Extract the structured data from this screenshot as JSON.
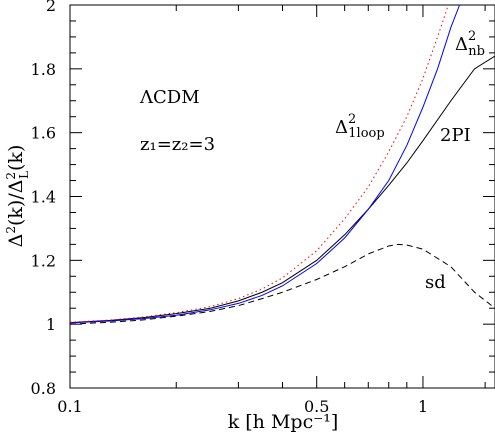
{
  "chart_data": {
    "type": "line",
    "xlabel": "k [h Mpc⁻¹]",
    "ylabel": "Δ²(k)/Δ²_L(k)",
    "xscale": "log",
    "xlim": [
      0.1,
      1.6
    ],
    "ylim": [
      0.8,
      2.0
    ],
    "x_ticks": [
      {
        "value": 0.1,
        "label": "0.1"
      },
      {
        "value": 0.5,
        "label": "0.5"
      },
      {
        "value": 1,
        "label": "1"
      }
    ],
    "y_ticks": [
      {
        "value": 0.8,
        "label": "0.8"
      },
      {
        "value": 1.0,
        "label": "1"
      },
      {
        "value": 1.2,
        "label": "1.2"
      },
      {
        "value": 1.4,
        "label": "1.4"
      },
      {
        "value": 1.6,
        "label": "1.6"
      },
      {
        "value": 1.8,
        "label": "1.8"
      },
      {
        "value": 2.0,
        "label": "2"
      }
    ],
    "annotations": {
      "model": "ΛCDM",
      "redshift": "z₁=z₂=3"
    },
    "series": [
      {
        "name": "2PI",
        "color": "#000000",
        "style": "solid",
        "points": [
          [
            0.1,
            1.005
          ],
          [
            0.13,
            1.012
          ],
          [
            0.16,
            1.02
          ],
          [
            0.2,
            1.033
          ],
          [
            0.25,
            1.05
          ],
          [
            0.3,
            1.073
          ],
          [
            0.35,
            1.1
          ],
          [
            0.4,
            1.13
          ],
          [
            0.5,
            1.2
          ],
          [
            0.6,
            1.28
          ],
          [
            0.7,
            1.36
          ],
          [
            0.8,
            1.435
          ],
          [
            0.9,
            1.505
          ],
          [
            1.0,
            1.575
          ],
          [
            1.2,
            1.7
          ],
          [
            1.4,
            1.8
          ],
          [
            1.6,
            1.84
          ]
        ]
      },
      {
        "name": "Δ²_nb",
        "color": "#0000ff",
        "style": "solid",
        "points": [
          [
            0.1,
            1.004
          ],
          [
            0.13,
            1.01
          ],
          [
            0.16,
            1.017
          ],
          [
            0.2,
            1.028
          ],
          [
            0.25,
            1.045
          ],
          [
            0.3,
            1.065
          ],
          [
            0.35,
            1.09
          ],
          [
            0.4,
            1.12
          ],
          [
            0.5,
            1.19
          ],
          [
            0.6,
            1.27
          ],
          [
            0.7,
            1.36
          ],
          [
            0.8,
            1.45
          ],
          [
            0.9,
            1.56
          ],
          [
            1.0,
            1.68
          ],
          [
            1.1,
            1.8
          ],
          [
            1.2,
            1.93
          ],
          [
            1.27,
            2.0
          ]
        ]
      },
      {
        "name": "Δ²_1loop",
        "color": "#ff0000",
        "style": "dotted",
        "points": [
          [
            0.1,
            1.006
          ],
          [
            0.13,
            1.013
          ],
          [
            0.16,
            1.022
          ],
          [
            0.2,
            1.036
          ],
          [
            0.25,
            1.055
          ],
          [
            0.3,
            1.08
          ],
          [
            0.35,
            1.11
          ],
          [
            0.4,
            1.145
          ],
          [
            0.5,
            1.23
          ],
          [
            0.6,
            1.33
          ],
          [
            0.7,
            1.43
          ],
          [
            0.8,
            1.54
          ],
          [
            0.9,
            1.65
          ],
          [
            1.0,
            1.77
          ],
          [
            1.1,
            1.9
          ],
          [
            1.18,
            2.0
          ]
        ]
      },
      {
        "name": "sd",
        "color": "#000000",
        "style": "dashed",
        "points": [
          [
            0.1,
            1.0
          ],
          [
            0.13,
            1.006
          ],
          [
            0.16,
            1.013
          ],
          [
            0.2,
            1.025
          ],
          [
            0.25,
            1.04
          ],
          [
            0.3,
            1.058
          ],
          [
            0.35,
            1.08
          ],
          [
            0.4,
            1.1
          ],
          [
            0.5,
            1.14
          ],
          [
            0.6,
            1.18
          ],
          [
            0.7,
            1.22
          ],
          [
            0.8,
            1.245
          ],
          [
            0.85,
            1.25
          ],
          [
            0.9,
            1.248
          ],
          [
            1.0,
            1.235
          ],
          [
            1.2,
            1.18
          ],
          [
            1.4,
            1.1
          ],
          [
            1.6,
            1.05
          ]
        ]
      }
    ]
  }
}
